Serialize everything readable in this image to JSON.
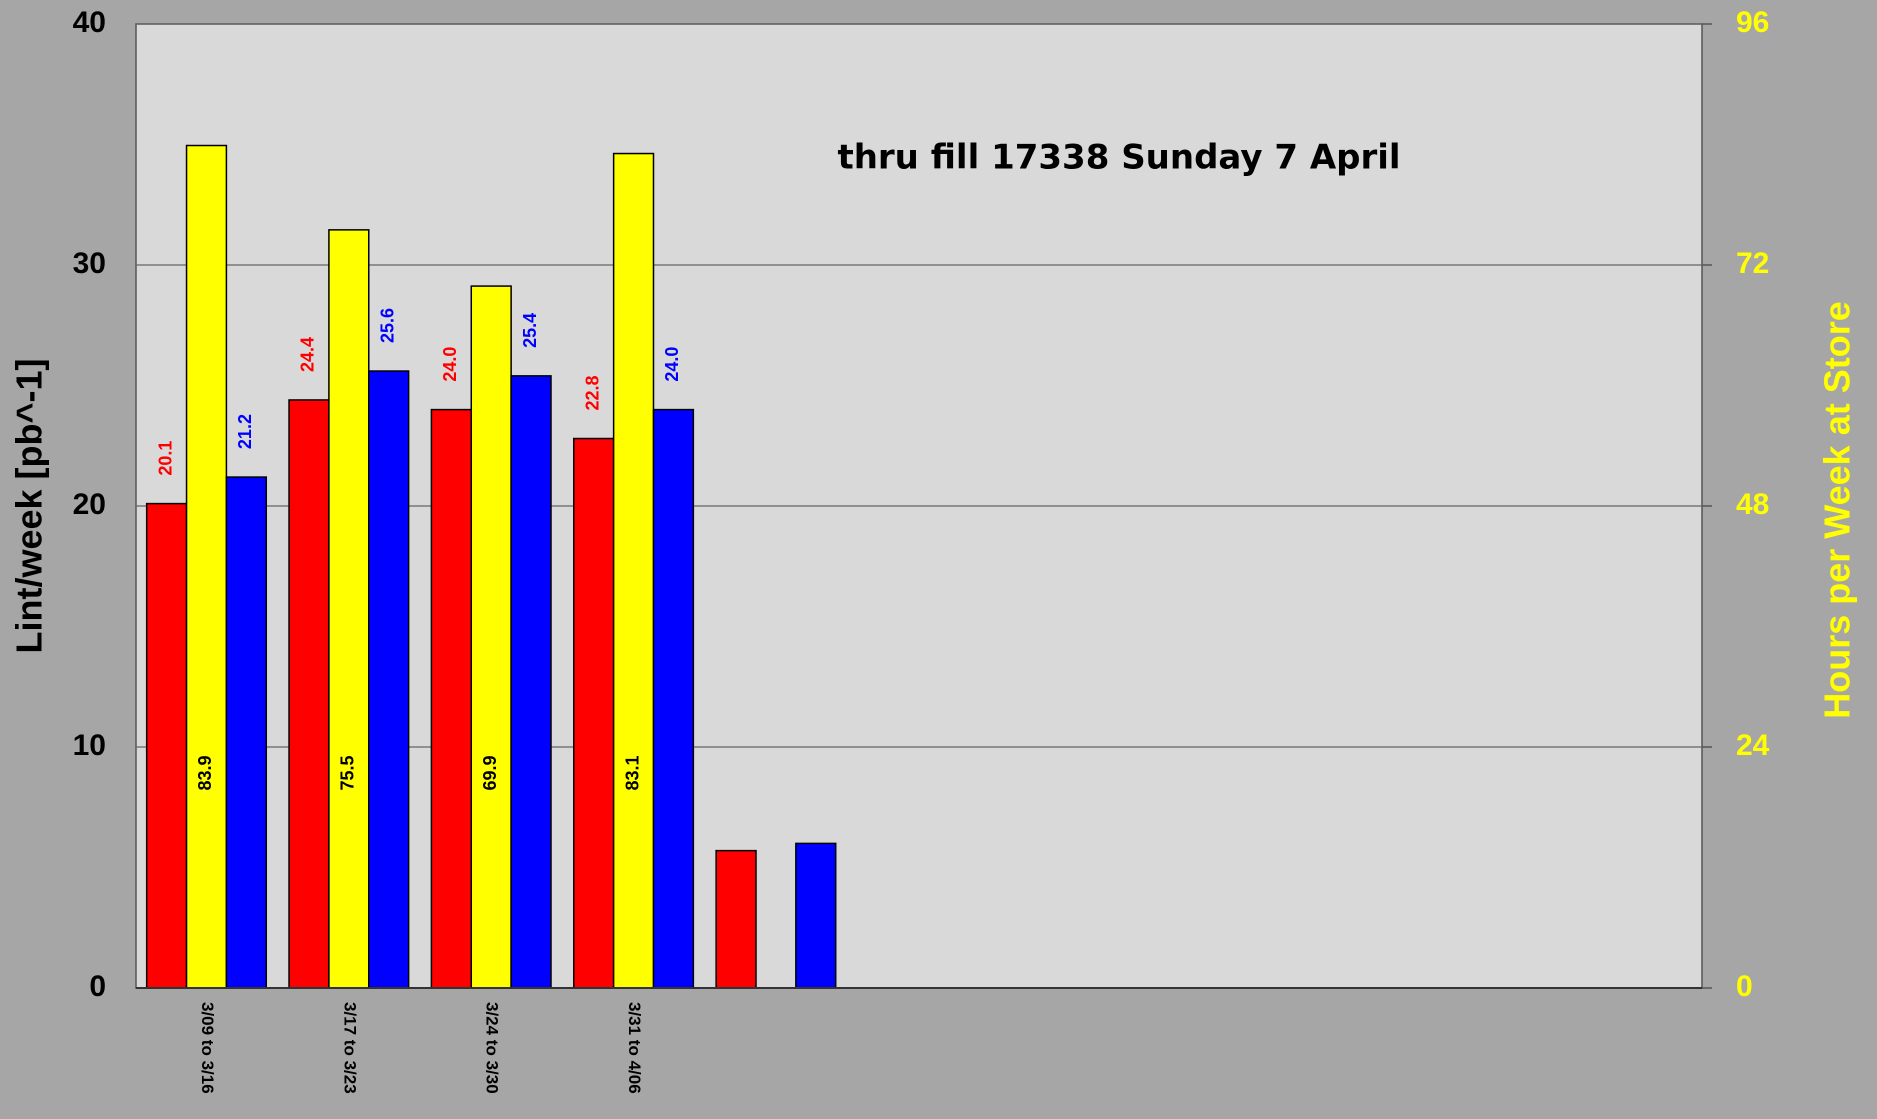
{
  "chart_data": {
    "type": "bar",
    "annotation": "thru  fill 17338 Sunday  7 April",
    "ylabel": "Lint/week  [pb^-1]",
    "y2label": "Hours per Week at Store",
    "categories": [
      "3/09 to 3/16",
      "3/17 to 3/23",
      "3/24 to 3/30",
      "3/31 to 4/06",
      null,
      null,
      null,
      null,
      null,
      null,
      null
    ],
    "series": [
      {
        "color": "#ff0000",
        "values": [
          20.1,
          24.4,
          24.0,
          22.8,
          5.7,
          null,
          null,
          null,
          null,
          null,
          null
        ],
        "value_labels": [
          "20.1",
          "24.4",
          "24.0",
          "22.8",
          null,
          null,
          null,
          null,
          null,
          null,
          null
        ]
      },
      {
        "color": "#ffff00",
        "axis": "y2",
        "values": [
          83.9,
          75.5,
          69.9,
          83.1,
          null,
          null,
          null,
          null,
          null,
          null,
          null
        ],
        "value_labels": [
          "83.9",
          "75.5",
          "69.9",
          "83.1",
          null,
          null,
          null,
          null,
          null,
          null,
          null
        ]
      },
      {
        "color": "#0000ff",
        "values": [
          21.2,
          25.6,
          25.4,
          24.0,
          6.0,
          null,
          null,
          null,
          null,
          null,
          null
        ],
        "value_labels": [
          "21.2",
          "25.6",
          "25.4",
          "24.0",
          null,
          null,
          null,
          null,
          null,
          null,
          null
        ]
      }
    ],
    "ylim": [
      0,
      40
    ],
    "yticks": [
      0,
      10,
      20,
      30,
      40
    ],
    "y2lim": [
      0,
      96
    ],
    "y2ticks": [
      0,
      24,
      48,
      72,
      96
    ],
    "grid": true
  }
}
